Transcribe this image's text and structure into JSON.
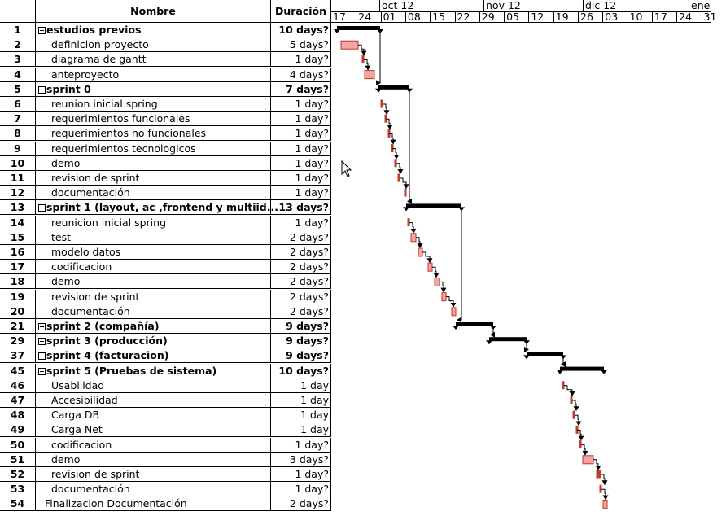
{
  "columns": {
    "name": "Nombre",
    "duration": "Duración"
  },
  "timeline": {
    "months": [
      "oct 12",
      "nov 12",
      "dic 12",
      "ene"
    ],
    "weeks": [
      "17",
      "24",
      "01",
      "08",
      "15",
      "22",
      "29",
      "05",
      "12",
      "19",
      "26",
      "03",
      "10",
      "17",
      "24",
      "31"
    ]
  },
  "colors": {
    "summary_bar": "#000000",
    "task_bar": "#f5a3a3",
    "task_border": "#c0392b",
    "link": "#000000"
  },
  "tasks": [
    {
      "id": "1",
      "name": "estudios previos",
      "duration": "10 days?",
      "summary": true,
      "toggle": "minus",
      "indent": 0
    },
    {
      "id": "2",
      "name": "definicion proyecto",
      "duration": "5 days?",
      "summary": false,
      "indent": 1
    },
    {
      "id": "3",
      "name": "diagrama de gantt",
      "duration": "1 day?",
      "summary": false,
      "indent": 1
    },
    {
      "id": "4",
      "name": "anteproyecto",
      "duration": "4 days?",
      "summary": false,
      "indent": 1
    },
    {
      "id": "5",
      "name": "sprint 0",
      "duration": "7 days?",
      "summary": true,
      "toggle": "minus",
      "indent": 0
    },
    {
      "id": "6",
      "name": "reunion inicial spring",
      "duration": "1 day?",
      "summary": false,
      "indent": 1
    },
    {
      "id": "7",
      "name": "requerimientos funcionales",
      "duration": "1 day?",
      "summary": false,
      "indent": 1
    },
    {
      "id": "8",
      "name": "requerimientos no funcionales",
      "duration": "1 day?",
      "summary": false,
      "indent": 1
    },
    {
      "id": "9",
      "name": "requerimientos tecnologicos",
      "duration": "1 day?",
      "summary": false,
      "indent": 1
    },
    {
      "id": "10",
      "name": "demo",
      "duration": "1 day?",
      "summary": false,
      "indent": 1
    },
    {
      "id": "11",
      "name": "revision de sprint",
      "duration": "1 day?",
      "summary": false,
      "indent": 1
    },
    {
      "id": "12",
      "name": "documentación",
      "duration": "1 day?",
      "summary": false,
      "indent": 1
    },
    {
      "id": "13",
      "name": "sprint 1 (layout, ac ,frontend y multiid...",
      "duration": "13 days?",
      "summary": true,
      "toggle": "minus",
      "indent": 0
    },
    {
      "id": "14",
      "name": "reunicion inicial spring",
      "duration": "1 day?",
      "summary": false,
      "indent": 1
    },
    {
      "id": "15",
      "name": "test",
      "duration": "2 days?",
      "summary": false,
      "indent": 1
    },
    {
      "id": "16",
      "name": "modelo datos",
      "duration": "2 days?",
      "summary": false,
      "indent": 1
    },
    {
      "id": "17",
      "name": "codificacion",
      "duration": "2 days?",
      "summary": false,
      "indent": 1
    },
    {
      "id": "18",
      "name": "demo",
      "duration": "2 days?",
      "summary": false,
      "indent": 1
    },
    {
      "id": "19",
      "name": "revision de sprint",
      "duration": "2 days?",
      "summary": false,
      "indent": 1
    },
    {
      "id": "20",
      "name": "documentación",
      "duration": "2 days?",
      "summary": false,
      "indent": 1
    },
    {
      "id": "21",
      "name": "sprint 2 (compañía)",
      "duration": "9 days?",
      "summary": true,
      "toggle": "plus",
      "indent": 0
    },
    {
      "id": "29",
      "name": "sprint 3 (producción)",
      "duration": "9 days?",
      "summary": true,
      "toggle": "plus",
      "indent": 0
    },
    {
      "id": "37",
      "name": "sprint 4 (facturacion)",
      "duration": "9 days?",
      "summary": true,
      "toggle": "plus",
      "indent": 0
    },
    {
      "id": "45",
      "name": "sprint 5 (Pruebas de sistema)",
      "duration": "10 days?",
      "summary": true,
      "toggle": "minus",
      "indent": 0
    },
    {
      "id": "46",
      "name": "Usabilidad",
      "duration": "1 day",
      "summary": false,
      "indent": 1
    },
    {
      "id": "47",
      "name": "Accesibilidad",
      "duration": "1 day",
      "summary": false,
      "indent": 1
    },
    {
      "id": "48",
      "name": "Carga DB",
      "duration": "1 day",
      "summary": false,
      "indent": 1
    },
    {
      "id": "49",
      "name": "Carga Net",
      "duration": "1 day",
      "summary": false,
      "indent": 1
    },
    {
      "id": "50",
      "name": "codificacion",
      "duration": "1 day?",
      "summary": false,
      "indent": 1
    },
    {
      "id": "51",
      "name": "demo",
      "duration": "3 days?",
      "summary": false,
      "indent": 1
    },
    {
      "id": "52",
      "name": "revision de sprint",
      "duration": "1 day?",
      "summary": false,
      "indent": 1
    },
    {
      "id": "53",
      "name": "documentación",
      "duration": "1 day?",
      "summary": false,
      "indent": 1
    },
    {
      "id": "54",
      "name": "Finalizacion Documentación",
      "duration": "2 days?",
      "summary": false,
      "indent": 0
    }
  ]
}
